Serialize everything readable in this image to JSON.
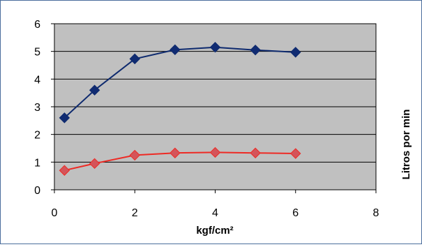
{
  "chart_data": {
    "type": "scatter",
    "title": "",
    "xlabel": "kgf/cm²",
    "ylabel": "Litros por min",
    "xlim": [
      0,
      8
    ],
    "ylim": [
      0,
      6
    ],
    "x_ticks": [
      "0",
      "2",
      "4",
      "6",
      "8"
    ],
    "y_ticks": [
      "0",
      "1",
      "2",
      "3",
      "4",
      "5",
      "6"
    ],
    "grid": true,
    "legend": "none",
    "series": [
      {
        "color": "#0e2a6e",
        "fill": "#102b72",
        "x": [
          0.25,
          1,
          2,
          3,
          4,
          5,
          6
        ],
        "y": [
          2.6,
          3.6,
          4.73,
          5.06,
          5.15,
          5.05,
          4.97
        ]
      },
      {
        "color": "#ee2a24",
        "fill": "#d4545a",
        "x": [
          0.25,
          1,
          2,
          3,
          4,
          5,
          6
        ],
        "y": [
          0.7,
          0.95,
          1.25,
          1.33,
          1.35,
          1.33,
          1.31
        ]
      }
    ]
  },
  "colors": {
    "plot_background": "#c0c0c0",
    "gridline": "#000000",
    "frame_border": "#4a6d9c"
  }
}
